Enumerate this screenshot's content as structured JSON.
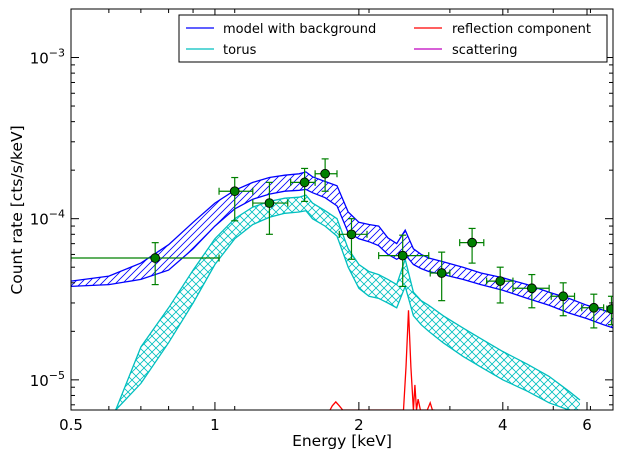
{
  "chart_data": {
    "type": "line",
    "xlabel": "Energy [keV]",
    "ylabel": "Count rate [cts/s/keV]",
    "x_scale": "log",
    "y_scale": "log",
    "xlim": [
      0.5,
      6.8
    ],
    "ylim": [
      6.5e-06,
      0.002
    ],
    "x_ticks": [
      {
        "value": 0.5,
        "label": "0.5"
      },
      {
        "value": 1,
        "label": "1"
      },
      {
        "value": 2,
        "label": "2"
      },
      {
        "value": 4,
        "label": "4"
      },
      {
        "value": 6,
        "label": "6"
      }
    ],
    "y_ticks": [
      {
        "value": 1e-05,
        "base": "10",
        "exp": "−5"
      },
      {
        "value": 0.0001,
        "base": "10",
        "exp": "−4"
      },
      {
        "value": 0.001,
        "base": "10",
        "exp": "−3"
      }
    ],
    "legend_position": "top-right",
    "legend": [
      {
        "label": "model with background",
        "color": "#0000ff"
      },
      {
        "label": "reflection component",
        "color": "#ff0000"
      },
      {
        "label": "torus",
        "color": "#00bfbf"
      },
      {
        "label": "scattering",
        "color": "#bf00bf"
      }
    ],
    "series": [
      {
        "name": "model with background",
        "color": "#0000ff",
        "hatch": "diagonal",
        "x": [
          0.5,
          0.6,
          0.7,
          0.8,
          0.9,
          1.0,
          1.1,
          1.2,
          1.3,
          1.4,
          1.5,
          1.55,
          1.6,
          1.7,
          1.8,
          1.9,
          2.0,
          2.1,
          2.2,
          2.3,
          2.4,
          2.5,
          2.6,
          2.7,
          2.8,
          3.0,
          3.3,
          3.6,
          4.0,
          4.5,
          5.0,
          5.5,
          6.0,
          6.5,
          6.8
        ],
        "lower": [
          3.8e-05,
          3.9e-05,
          4.2e-05,
          4.8e-05,
          6.5e-05,
          9e-05,
          0.000115,
          0.000132,
          0.000142,
          0.000148,
          0.00015,
          0.000152,
          0.000145,
          0.000135,
          0.00012,
          8.2e-05,
          7.5e-05,
          7.2e-05,
          6.8e-05,
          6e-05,
          5.6e-05,
          6e-05,
          5.2e-05,
          4.9e-05,
          4.7e-05,
          4.5e-05,
          4.2e-05,
          3.9e-05,
          3.6e-05,
          3.2e-05,
          2.9e-05,
          2.6e-05,
          2.4e-05,
          2.2e-05,
          2.1e-05
        ],
        "upper": [
          4.1e-05,
          4.4e-05,
          5.3e-05,
          6.9e-05,
          9.5e-05,
          0.000125,
          0.00015,
          0.000168,
          0.00018,
          0.000186,
          0.00019,
          0.000195,
          0.000182,
          0.00017,
          0.00016,
          0.00011,
          9.5e-05,
          9.2e-05,
          9e-05,
          7.6e-05,
          7e-05,
          8.5e-05,
          6.5e-05,
          6e-05,
          5.7e-05,
          5.4e-05,
          5e-05,
          4.6e-05,
          4.3e-05,
          3.9e-05,
          3.5e-05,
          3.2e-05,
          2.9e-05,
          2.7e-05,
          2.6e-05
        ]
      },
      {
        "name": "torus",
        "color": "#00bfbf",
        "hatch": "cross",
        "x": [
          0.62,
          0.7,
          0.8,
          0.9,
          1.0,
          1.1,
          1.2,
          1.3,
          1.4,
          1.5,
          1.55,
          1.6,
          1.7,
          1.8,
          1.9,
          2.0,
          2.1,
          2.2,
          2.3,
          2.4,
          2.5,
          2.6,
          2.7,
          2.8,
          3.0,
          3.3,
          3.6,
          4.0,
          4.5,
          5.0,
          5.5,
          5.8
        ],
        "lower": [
          6.5e-06,
          9.5e-06,
          1.7e-05,
          3e-05,
          5.2e-05,
          7.5e-05,
          9.2e-05,
          0.000102,
          0.000108,
          0.00011,
          0.000112,
          0.0001,
          9e-05,
          7.8e-05,
          5e-05,
          3.7e-05,
          3.3e-05,
          3.2e-05,
          3e-05,
          2.8e-05,
          3.8e-05,
          2.5e-05,
          2.2e-05,
          2e-05,
          1.7e-05,
          1.4e-05,
          1.2e-05,
          1e-05,
          8.5e-06,
          7.2e-06,
          6.5e-06,
          6.5e-06
        ],
        "upper": [
          6.5e-06,
          1.6e-05,
          2.8e-05,
          4.8e-05,
          7.5e-05,
          0.0001,
          0.000118,
          0.000128,
          0.000134,
          0.000136,
          0.00014,
          0.000125,
          0.000112,
          0.0001,
          6.5e-05,
          5.2e-05,
          4.7e-05,
          4.5e-05,
          4.2e-05,
          3.9e-05,
          5.6e-05,
          3.5e-05,
          3.1e-05,
          2.9e-05,
          2.5e-05,
          2.1e-05,
          1.8e-05,
          1.5e-05,
          1.25e-05,
          1.05e-05,
          8.5e-06,
          7.5e-06
        ]
      },
      {
        "name": "reflection component",
        "color": "#ff0000",
        "x": [
          1.74,
          1.76,
          1.79,
          1.82,
          1.85,
          2.48,
          2.51,
          2.54,
          2.57,
          2.6,
          2.62,
          2.64,
          2.66,
          2.69,
          2.72,
          2.78,
          2.82,
          2.85,
          2.88
        ],
        "y": [
          6.5e-06,
          6.9e-06,
          7.3e-06,
          6.9e-06,
          6.5e-06,
          6.5e-06,
          1.2e-05,
          2.7e-05,
          1.2e-05,
          6.5e-06,
          9.3e-06,
          6.5e-06,
          7.6e-06,
          6.5e-06,
          6.5e-06,
          6.5e-06,
          7.2e-06,
          6.5e-06,
          6.5e-06
        ]
      },
      {
        "name": "scattering",
        "color": "#bf00bf",
        "x": [],
        "y": []
      }
    ],
    "data_points": {
      "color": "#008000",
      "points": [
        {
          "x": 0.75,
          "y": 5.7e-05,
          "xerr": [
            0.5,
            1.02
          ],
          "yerr": [
            3.9e-05,
            7.1e-05
          ]
        },
        {
          "x": 1.1,
          "y": 0.000148,
          "xerr": [
            1.02,
            1.2
          ],
          "yerr": [
            9.7e-05,
            0.00018
          ]
        },
        {
          "x": 1.3,
          "y": 0.000125,
          "xerr": [
            1.2,
            1.42
          ],
          "yerr": [
            8e-05,
            0.000168
          ]
        },
        {
          "x": 1.54,
          "y": 0.000168,
          "xerr": [
            1.44,
            1.62
          ],
          "yerr": [
            0.000128,
            0.000205
          ]
        },
        {
          "x": 1.7,
          "y": 0.00019,
          "xerr": [
            1.62,
            1.8
          ],
          "yerr": [
            0.000148,
            0.000235
          ]
        },
        {
          "x": 1.93,
          "y": 8e-05,
          "xerr": [
            1.82,
            2.08
          ],
          "yerr": [
            5.6e-05,
            0.0001
          ]
        },
        {
          "x": 2.47,
          "y": 5.9e-05,
          "xerr": [
            2.2,
            2.8
          ],
          "yerr": [
            3.8e-05,
            7.9e-05
          ]
        },
        {
          "x": 2.98,
          "y": 4.6e-05,
          "xerr": [
            2.82,
            3.1
          ],
          "yerr": [
            3.1e-05,
            6.2e-05
          ]
        },
        {
          "x": 3.45,
          "y": 7.1e-05,
          "xerr": [
            3.25,
            3.65
          ],
          "yerr": [
            5.3e-05,
            8.7e-05
          ]
        },
        {
          "x": 3.95,
          "y": 4.1e-05,
          "xerr": [
            3.7,
            4.2
          ],
          "yerr": [
            3e-05,
            5e-05
          ]
        },
        {
          "x": 4.6,
          "y": 3.7e-05,
          "xerr": [
            4.2,
            5.0
          ],
          "yerr": [
            2.8e-05,
            4.5e-05
          ]
        },
        {
          "x": 5.35,
          "y": 3.3e-05,
          "xerr": [
            5.05,
            5.65
          ],
          "yerr": [
            2.5e-05,
            4e-05
          ]
        },
        {
          "x": 6.2,
          "y": 2.8e-05,
          "xerr": [
            5.85,
            6.5
          ],
          "yerr": [
            2.1e-05,
            3.4e-05
          ]
        },
        {
          "x": 6.75,
          "y": 2.75e-05,
          "xerr": [
            6.6,
            6.8
          ],
          "yerr": [
            2.2e-05,
            3.3e-05
          ]
        }
      ]
    }
  }
}
